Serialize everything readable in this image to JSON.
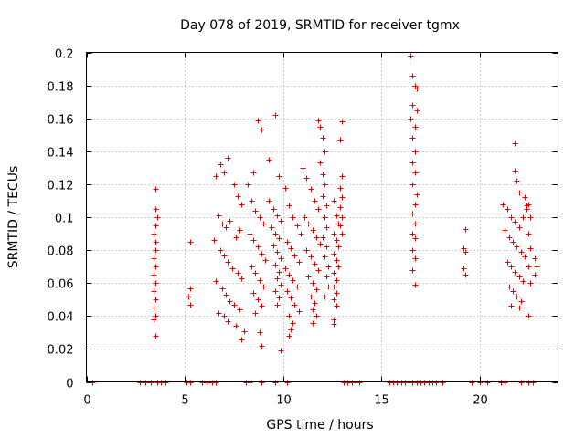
{
  "chart_data": {
    "type": "scatter",
    "title": "Day 078 of 2019, SRMTID for receiver tgmx",
    "xlabel": "GPS time / hours",
    "ylabel": "SRMTID / TECUs",
    "xlim": [
      0,
      24
    ],
    "ylim": [
      0,
      0.2
    ],
    "xticks": [
      0,
      5,
      10,
      15,
      20
    ],
    "xtick_labels": [
      "0",
      "5",
      "10",
      "15",
      "20"
    ],
    "yticks": [
      0,
      0.02,
      0.04,
      0.06,
      0.08,
      0.1,
      0.12,
      0.14,
      0.16,
      0.18,
      0.2
    ],
    "ytick_labels": [
      "0",
      "0.02",
      "0.04",
      "0.06",
      "0.08",
      "0.1",
      "0.12",
      "0.14",
      "0.16",
      "0.18",
      "0.2"
    ],
    "grid": true,
    "marker": "+",
    "series": [
      {
        "name": "SRMTID",
        "color": "#e00000",
        "points": [
          [
            0.3,
            0
          ],
          [
            2.7,
            0
          ],
          [
            3.0,
            0
          ],
          [
            3.3,
            0
          ],
          [
            3.6,
            0
          ],
          [
            3.8,
            0
          ],
          [
            4.0,
            0
          ],
          [
            5.1,
            0
          ],
          [
            5.3,
            0
          ],
          [
            5.9,
            0
          ],
          [
            6.1,
            0
          ],
          [
            6.4,
            0
          ],
          [
            6.6,
            0
          ],
          [
            8.1,
            0
          ],
          [
            8.3,
            0
          ],
          [
            8.9,
            0
          ],
          [
            9.6,
            0
          ],
          [
            10.2,
            0
          ],
          [
            13.1,
            0
          ],
          [
            13.3,
            0
          ],
          [
            13.5,
            0
          ],
          [
            13.7,
            0
          ],
          [
            13.9,
            0
          ],
          [
            15.4,
            0
          ],
          [
            15.6,
            0
          ],
          [
            15.8,
            0
          ],
          [
            16.0,
            0
          ],
          [
            16.2,
            0
          ],
          [
            16.4,
            0
          ],
          [
            16.6,
            0
          ],
          [
            16.8,
            0
          ],
          [
            17.0,
            0
          ],
          [
            17.2,
            0
          ],
          [
            17.4,
            0
          ],
          [
            17.6,
            0
          ],
          [
            17.8,
            0
          ],
          [
            18.1,
            0
          ],
          [
            19.6,
            0
          ],
          [
            20.0,
            0
          ],
          [
            20.4,
            0
          ],
          [
            21.1,
            0
          ],
          [
            21.3,
            0
          ],
          [
            22.1,
            0
          ],
          [
            22.5,
            0
          ],
          [
            22.7,
            0
          ],
          [
            3.5,
            0.117
          ],
          [
            3.5,
            0.105
          ],
          [
            3.6,
            0.1
          ],
          [
            3.5,
            0.095
          ],
          [
            3.4,
            0.09
          ],
          [
            3.5,
            0.085
          ],
          [
            3.5,
            0.08
          ],
          [
            3.4,
            0.075
          ],
          [
            3.5,
            0.07
          ],
          [
            3.4,
            0.065
          ],
          [
            3.5,
            0.06
          ],
          [
            3.4,
            0.055
          ],
          [
            3.5,
            0.05
          ],
          [
            3.4,
            0.045
          ],
          [
            3.5,
            0.04
          ],
          [
            3.4,
            0.038
          ],
          [
            3.5,
            0.028
          ],
          [
            5.3,
            0.085
          ],
          [
            5.3,
            0.057
          ],
          [
            5.2,
            0.052
          ],
          [
            5.3,
            0.047
          ],
          [
            6.6,
            0.125
          ],
          [
            6.8,
            0.132
          ],
          [
            7.0,
            0.127
          ],
          [
            7.2,
            0.136
          ],
          [
            7.5,
            0.12
          ],
          [
            7.7,
            0.113
          ],
          [
            7.9,
            0.108
          ],
          [
            6.7,
            0.101
          ],
          [
            6.9,
            0.096
          ],
          [
            7.1,
            0.094
          ],
          [
            7.3,
            0.098
          ],
          [
            7.6,
            0.088
          ],
          [
            7.8,
            0.092
          ],
          [
            6.5,
            0.086
          ],
          [
            6.8,
            0.08
          ],
          [
            7.0,
            0.077
          ],
          [
            7.2,
            0.073
          ],
          [
            7.4,
            0.069
          ],
          [
            7.7,
            0.066
          ],
          [
            7.9,
            0.063
          ],
          [
            6.6,
            0.061
          ],
          [
            6.9,
            0.057
          ],
          [
            7.1,
            0.053
          ],
          [
            7.3,
            0.049
          ],
          [
            7.5,
            0.047
          ],
          [
            7.8,
            0.044
          ],
          [
            6.7,
            0.042
          ],
          [
            7.0,
            0.04
          ],
          [
            7.2,
            0.037
          ],
          [
            7.6,
            0.034
          ],
          [
            8.0,
            0.031
          ],
          [
            7.9,
            0.026
          ],
          [
            8.2,
            0.12
          ],
          [
            8.4,
            0.11
          ],
          [
            8.6,
            0.104
          ],
          [
            8.8,
            0.1
          ],
          [
            9.0,
            0.096
          ],
          [
            8.3,
            0.09
          ],
          [
            8.5,
            0.086
          ],
          [
            8.7,
            0.082
          ],
          [
            8.9,
            0.078
          ],
          [
            9.1,
            0.074
          ],
          [
            8.4,
            0.07
          ],
          [
            8.6,
            0.066
          ],
          [
            8.8,
            0.062
          ],
          [
            9.0,
            0.058
          ],
          [
            8.5,
            0.054
          ],
          [
            8.7,
            0.05
          ],
          [
            8.9,
            0.046
          ],
          [
            8.6,
            0.042
          ],
          [
            8.8,
            0.03
          ],
          [
            8.9,
            0.022
          ],
          [
            8.7,
            0.159
          ],
          [
            8.9,
            0.153
          ],
          [
            8.5,
            0.127
          ],
          [
            9.3,
            0.11
          ],
          [
            9.5,
            0.105
          ],
          [
            9.7,
            0.101
          ],
          [
            9.9,
            0.098
          ],
          [
            9.4,
            0.094
          ],
          [
            9.6,
            0.09
          ],
          [
            9.8,
            0.087
          ],
          [
            9.5,
            0.083
          ],
          [
            9.7,
            0.079
          ],
          [
            9.9,
            0.075
          ],
          [
            9.6,
            0.071
          ],
          [
            9.8,
            0.067
          ],
          [
            9.7,
            0.063
          ],
          [
            9.9,
            0.059
          ],
          [
            9.6,
            0.055
          ],
          [
            9.8,
            0.051
          ],
          [
            9.7,
            0.047
          ],
          [
            9.9,
            0.019
          ],
          [
            9.6,
            0.162
          ],
          [
            9.8,
            0.125
          ],
          [
            9.3,
            0.135
          ],
          [
            10.1,
            0.118
          ],
          [
            10.3,
            0.107
          ],
          [
            10.5,
            0.1
          ],
          [
            10.7,
            0.095
          ],
          [
            10.9,
            0.09
          ],
          [
            10.2,
            0.085
          ],
          [
            10.4,
            0.081
          ],
          [
            10.6,
            0.077
          ],
          [
            10.8,
            0.073
          ],
          [
            10.1,
            0.069
          ],
          [
            10.3,
            0.065
          ],
          [
            10.5,
            0.062
          ],
          [
            10.7,
            0.058
          ],
          [
            10.2,
            0.055
          ],
          [
            10.4,
            0.051
          ],
          [
            10.6,
            0.047
          ],
          [
            10.8,
            0.043
          ],
          [
            10.3,
            0.04
          ],
          [
            10.5,
            0.036
          ],
          [
            10.4,
            0.032
          ],
          [
            10.3,
            0.028
          ],
          [
            11.0,
            0.13
          ],
          [
            11.2,
            0.124
          ],
          [
            11.4,
            0.117
          ],
          [
            11.6,
            0.11
          ],
          [
            11.8,
            0.105
          ],
          [
            11.1,
            0.1
          ],
          [
            11.3,
            0.096
          ],
          [
            11.5,
            0.092
          ],
          [
            11.7,
            0.088
          ],
          [
            11.9,
            0.084
          ],
          [
            11.2,
            0.08
          ],
          [
            11.4,
            0.076
          ],
          [
            11.6,
            0.072
          ],
          [
            11.8,
            0.068
          ],
          [
            11.3,
            0.064
          ],
          [
            11.5,
            0.06
          ],
          [
            11.7,
            0.056
          ],
          [
            11.4,
            0.052
          ],
          [
            11.6,
            0.048
          ],
          [
            11.5,
            0.044
          ],
          [
            11.7,
            0.04
          ],
          [
            11.5,
            0.036
          ],
          [
            11.8,
            0.159
          ],
          [
            11.9,
            0.155
          ],
          [
            12.0,
            0.148
          ],
          [
            12.1,
            0.14
          ],
          [
            11.9,
            0.133
          ],
          [
            12.0,
            0.126
          ],
          [
            12.1,
            0.12
          ],
          [
            12.0,
            0.113
          ],
          [
            12.2,
            0.107
          ],
          [
            12.1,
            0.1
          ],
          [
            12.2,
            0.094
          ],
          [
            12.0,
            0.088
          ],
          [
            12.2,
            0.082
          ],
          [
            12.1,
            0.076
          ],
          [
            12.3,
            0.07
          ],
          [
            12.2,
            0.064
          ],
          [
            12.3,
            0.058
          ],
          [
            12.1,
            0.052
          ],
          [
            12.6,
            0.11
          ],
          [
            12.7,
            0.101
          ],
          [
            12.8,
            0.096
          ],
          [
            12.6,
            0.09
          ],
          [
            12.7,
            0.086
          ],
          [
            12.8,
            0.082
          ],
          [
            12.6,
            0.078
          ],
          [
            12.7,
            0.074
          ],
          [
            12.8,
            0.07
          ],
          [
            12.6,
            0.066
          ],
          [
            12.7,
            0.062
          ],
          [
            12.6,
            0.058
          ],
          [
            12.7,
            0.054
          ],
          [
            12.6,
            0.05
          ],
          [
            12.7,
            0.046
          ],
          [
            12.6,
            0.038
          ],
          [
            12.6,
            0.035
          ],
          [
            13.0,
            0.158
          ],
          [
            12.9,
            0.147
          ],
          [
            13.0,
            0.125
          ],
          [
            12.9,
            0.118
          ],
          [
            13.0,
            0.112
          ],
          [
            12.9,
            0.106
          ],
          [
            13.0,
            0.1
          ],
          [
            12.9,
            0.095
          ],
          [
            13.0,
            0.09
          ],
          [
            16.5,
            0.198
          ],
          [
            16.6,
            0.186
          ],
          [
            16.7,
            0.18
          ],
          [
            16.8,
            0.178
          ],
          [
            16.6,
            0.168
          ],
          [
            16.8,
            0.165
          ],
          [
            16.5,
            0.16
          ],
          [
            16.7,
            0.155
          ],
          [
            16.6,
            0.148
          ],
          [
            16.7,
            0.14
          ],
          [
            16.6,
            0.133
          ],
          [
            16.7,
            0.127
          ],
          [
            16.6,
            0.12
          ],
          [
            16.8,
            0.114
          ],
          [
            16.7,
            0.108
          ],
          [
            16.6,
            0.102
          ],
          [
            16.7,
            0.096
          ],
          [
            16.6,
            0.09
          ],
          [
            16.7,
            0.087
          ],
          [
            16.6,
            0.08
          ],
          [
            16.7,
            0.075
          ],
          [
            16.6,
            0.068
          ],
          [
            16.7,
            0.059
          ],
          [
            19.3,
            0.093
          ],
          [
            19.2,
            0.081
          ],
          [
            19.3,
            0.079
          ],
          [
            19.2,
            0.069
          ],
          [
            19.3,
            0.065
          ],
          [
            21.2,
            0.108
          ],
          [
            21.4,
            0.105
          ],
          [
            21.6,
            0.1
          ],
          [
            21.8,
            0.097
          ],
          [
            22.0,
            0.094
          ],
          [
            22.2,
            0.1
          ],
          [
            22.4,
            0.105
          ],
          [
            21.3,
            0.092
          ],
          [
            21.5,
            0.088
          ],
          [
            21.7,
            0.085
          ],
          [
            21.9,
            0.082
          ],
          [
            22.1,
            0.079
          ],
          [
            22.3,
            0.076
          ],
          [
            21.4,
            0.073
          ],
          [
            21.6,
            0.07
          ],
          [
            21.8,
            0.067
          ],
          [
            22.0,
            0.064
          ],
          [
            22.2,
            0.061
          ],
          [
            21.5,
            0.058
          ],
          [
            21.7,
            0.055
          ],
          [
            21.9,
            0.052
          ],
          [
            22.1,
            0.049
          ],
          [
            21.6,
            0.046
          ],
          [
            22.0,
            0.045
          ],
          [
            21.8,
            0.145
          ],
          [
            21.8,
            0.128
          ],
          [
            21.9,
            0.122
          ],
          [
            22.0,
            0.115
          ],
          [
            22.3,
            0.112
          ],
          [
            22.4,
            0.107
          ],
          [
            22.5,
            0.108
          ],
          [
            22.6,
            0.1
          ],
          [
            22.5,
            0.09
          ],
          [
            22.6,
            0.081
          ],
          [
            22.5,
            0.07
          ],
          [
            22.6,
            0.06
          ],
          [
            22.5,
            0.04
          ],
          [
            22.8,
            0.075
          ],
          [
            22.9,
            0.07
          ],
          [
            22.8,
            0.065
          ]
        ]
      }
    ]
  }
}
